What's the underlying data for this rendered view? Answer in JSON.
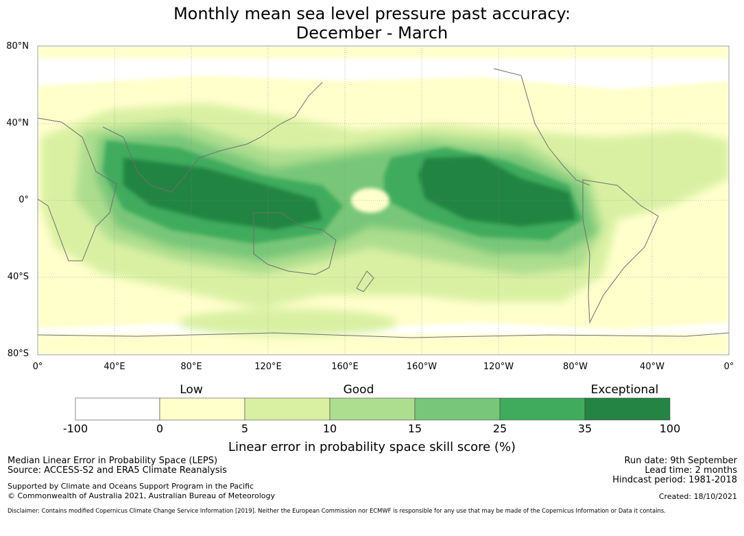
{
  "title": {
    "line1": "Monthly mean sea level pressure past accuracy:",
    "line2": "December - March"
  },
  "map": {
    "lat_labels": [
      "80°N",
      "40°N",
      "0°",
      "40°S",
      "80°S"
    ],
    "lon_labels": [
      "0°",
      "40°E",
      "80°E",
      "120°E",
      "160°E",
      "160°W",
      "120°W",
      "80°W",
      "40°W",
      "0°"
    ],
    "score_field": {
      "description_levels": [
        0,
        5,
        10,
        15,
        25,
        35,
        100
      ],
      "highest_region": "tropical Pacific and Maritime Continent"
    }
  },
  "colorbar": {
    "categories": [
      "Low",
      "Good",
      "Exceptional"
    ],
    "ticks": [
      "-100",
      "0",
      "5",
      "10",
      "15",
      "25",
      "35",
      "100"
    ],
    "colors": [
      "#ffffff",
      "#ffffcc",
      "#d9f0a3",
      "#addd8e",
      "#78c679",
      "#41ab5d",
      "#238443"
    ],
    "label": "Linear error in probability space skill score (%)"
  },
  "footer": {
    "left_line1": "Median Linear Error in Probability Space (LEPS)",
    "left_line2": "Source: ACCESS-S2 and ERA5 Climate Reanalysis",
    "left_line3": "Supported by Climate and Oceans Support Program in the Pacific",
    "left_line4": "© Commonwealth of Australia 2021, Australian Bureau of Meteorology",
    "right_line1": "Run date: 9th September",
    "right_line2": "Lead time: 2 months",
    "right_line3": "Hindcast period: 1981-2018",
    "right_line4": "Created: 18/10/2021",
    "disclaimer": "Disclaimer: Contains modified Copernicus Climate Change Service Information [2019]. Neither the European Commission nor ECMWF is responsible for any use that may be made of the Copernicus Information or Data it contains."
  }
}
